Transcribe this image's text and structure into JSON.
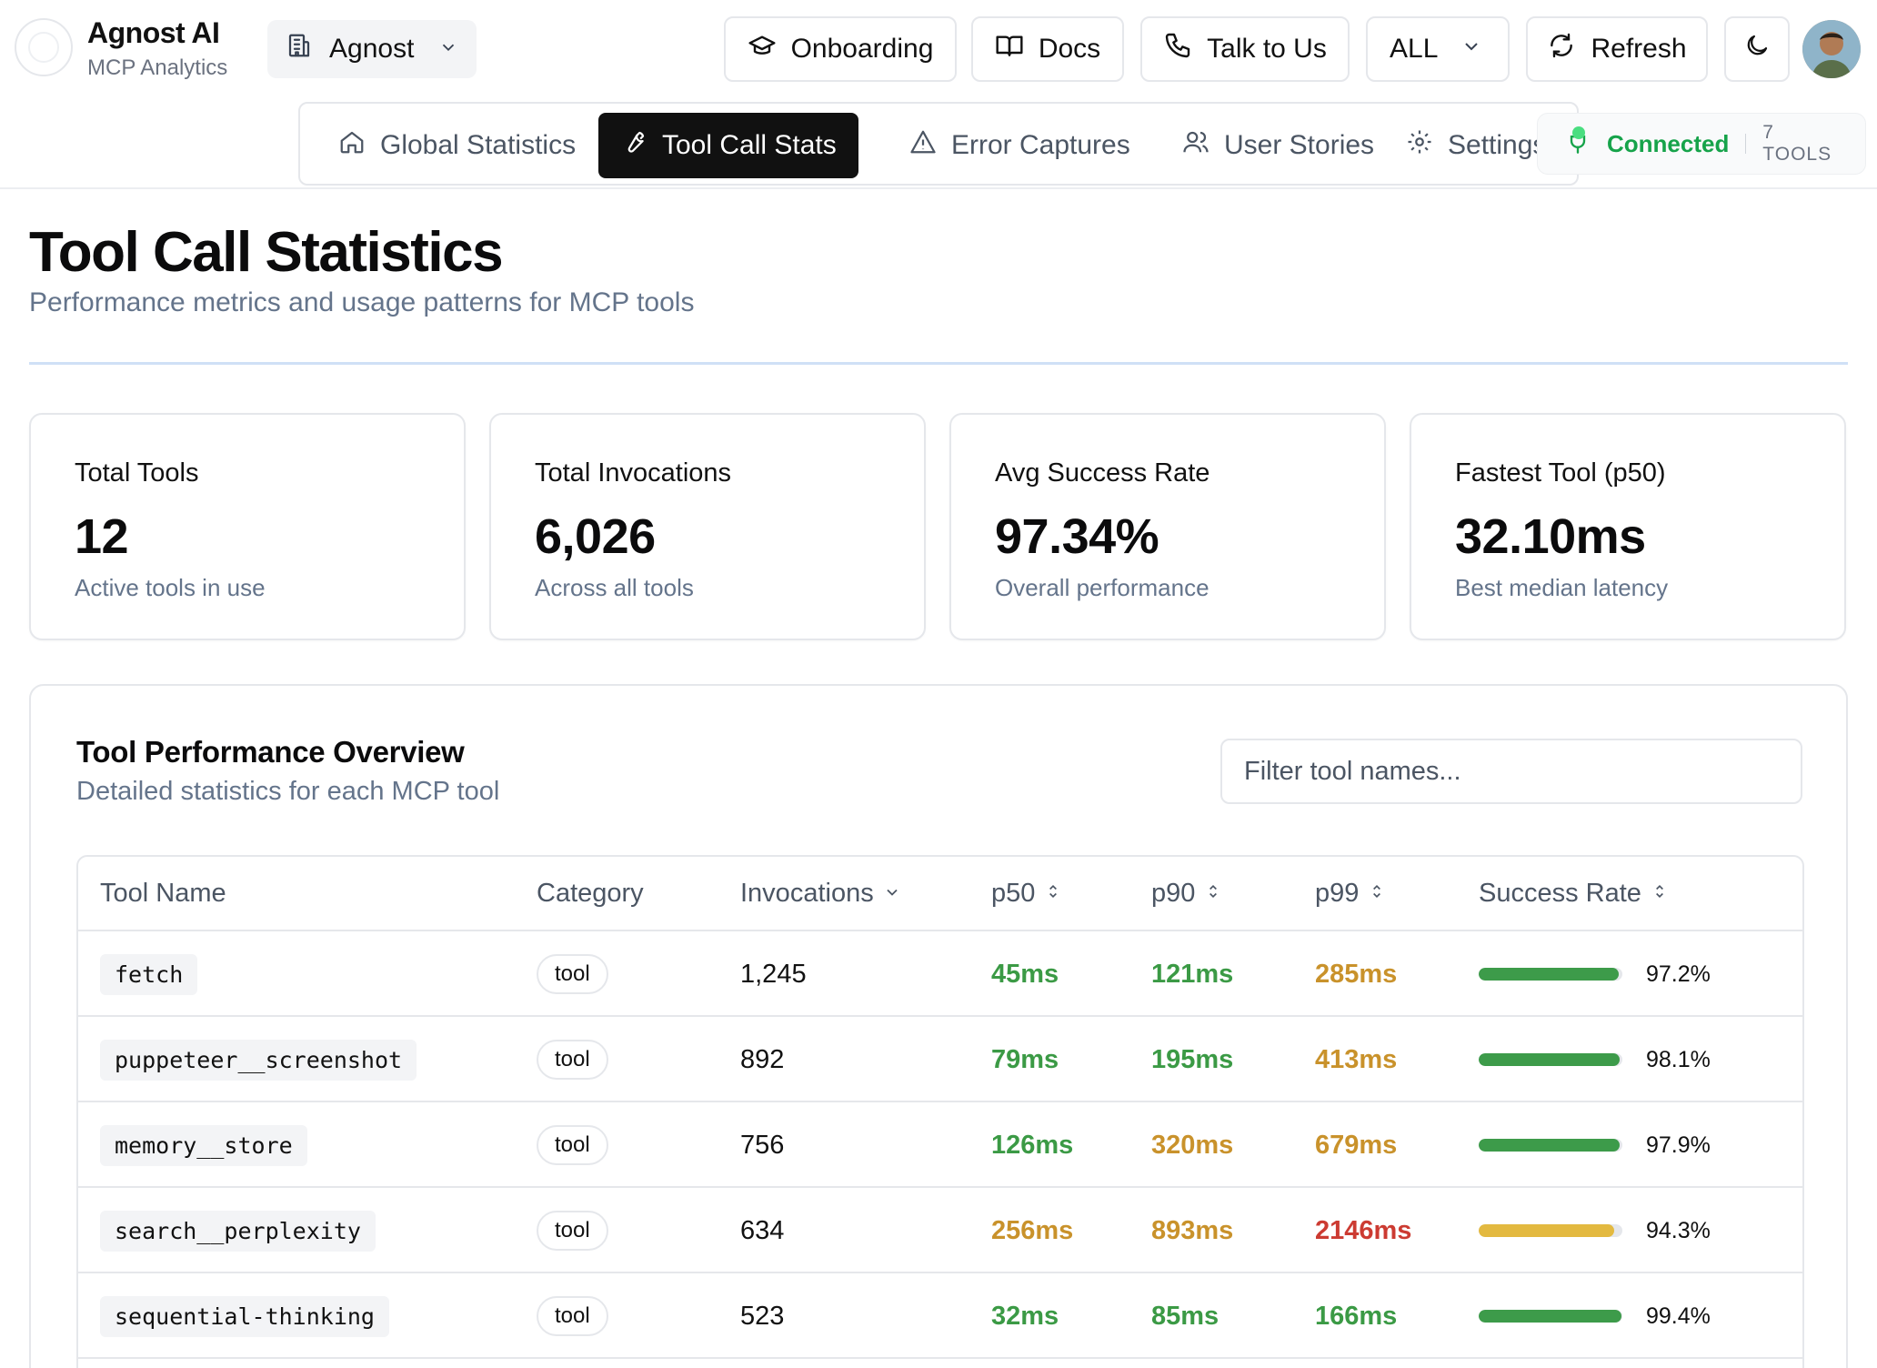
{
  "brand": {
    "name": "Agnost AI",
    "subtitle": "MCP Analytics"
  },
  "org_select": {
    "value": "Agnost",
    "icon": "building-icon"
  },
  "header_buttons": {
    "onboarding": "Onboarding",
    "docs": "Docs",
    "talk": "Talk to Us",
    "scope": "ALL",
    "refresh": "Refresh"
  },
  "tabs": [
    {
      "label": "Global Statistics",
      "icon": "home-icon"
    },
    {
      "label": "Tool Call Stats",
      "icon": "wrench-icon",
      "active": true
    },
    {
      "label": "Error Captures",
      "icon": "warning-icon"
    },
    {
      "label": "User Stories",
      "icon": "users-icon"
    },
    {
      "label": "Settings",
      "icon": "gear-icon"
    }
  ],
  "connection": {
    "status": "Connected",
    "tools": "7 TOOLS",
    "color": "#16a34a"
  },
  "page": {
    "title": "Tool Call Statistics",
    "subtitle": "Performance metrics and usage patterns for MCP tools"
  },
  "stats": [
    {
      "title": "Total Tools",
      "value": "12",
      "sub": "Active tools in use"
    },
    {
      "title": "Total Invocations",
      "value": "6,026",
      "sub": "Across all tools"
    },
    {
      "title": "Avg Success Rate",
      "value": "97.34%",
      "sub": "Overall performance"
    },
    {
      "title": "Fastest Tool (p50)",
      "value": "32.10ms",
      "sub": "Best median latency"
    }
  ],
  "panel": {
    "title": "Tool Performance Overview",
    "subtitle": "Detailed statistics for each MCP tool",
    "filter_placeholder": "Filter tool names..."
  },
  "table": {
    "columns": [
      "Tool Name",
      "Category",
      "Invocations",
      "p50",
      "p90",
      "p99",
      "Success Rate"
    ],
    "rows": [
      {
        "name": "fetch",
        "category": "tool",
        "invocations": "1,245",
        "p50": "45ms",
        "p90": "121ms",
        "p99": "285ms",
        "success": "97.2%",
        "success_value": 97.2,
        "p50_color": "#3b9a45",
        "p90_color": "#3b9a45",
        "p99_color": "#c9922b",
        "bar_color": "#3d9b4a"
      },
      {
        "name": "puppeteer__screenshot",
        "category": "tool",
        "invocations": "892",
        "p50": "79ms",
        "p90": "195ms",
        "p99": "413ms",
        "success": "98.1%",
        "success_value": 98.1,
        "p50_color": "#3b9a45",
        "p90_color": "#3b9a45",
        "p99_color": "#c9922b",
        "bar_color": "#3d9b4a"
      },
      {
        "name": "memory__store",
        "category": "tool",
        "invocations": "756",
        "p50": "126ms",
        "p90": "320ms",
        "p99": "679ms",
        "success": "97.9%",
        "success_value": 97.9,
        "p50_color": "#3b9a45",
        "p90_color": "#c9922b",
        "p99_color": "#c9922b",
        "bar_color": "#3d9b4a"
      },
      {
        "name": "search__perplexity",
        "category": "tool",
        "invocations": "634",
        "p50": "256ms",
        "p90": "893ms",
        "p99": "2146ms",
        "success": "94.3%",
        "success_value": 94.3,
        "p50_color": "#c9922b",
        "p90_color": "#c9922b",
        "p99_color": "#cc3b32",
        "bar_color": "#e3b940"
      },
      {
        "name": "sequential-thinking",
        "category": "tool",
        "invocations": "523",
        "p50": "32ms",
        "p90": "85ms",
        "p99": "166ms",
        "success": "99.4%",
        "success_value": 99.4,
        "p50_color": "#3b9a45",
        "p90_color": "#3b9a45",
        "p99_color": "#3b9a45",
        "bar_color": "#3d9b4a"
      }
    ]
  }
}
